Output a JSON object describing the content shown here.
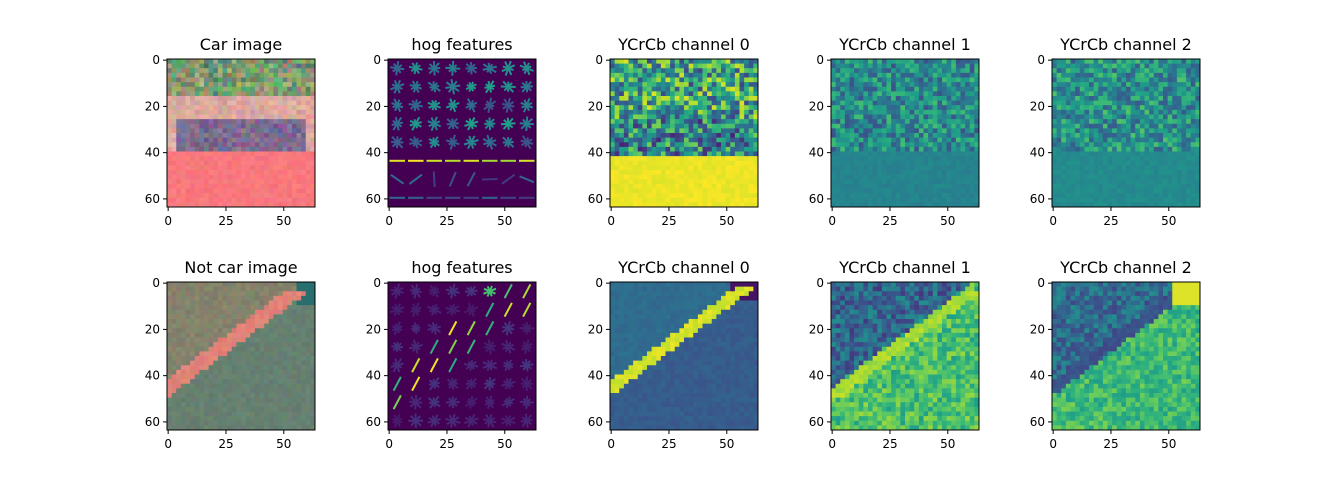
{
  "figure": {
    "rows": [
      {
        "panels": [
          {
            "title": "Car image",
            "kind": "photo-car"
          },
          {
            "title": "hog features",
            "kind": "hog-car"
          },
          {
            "title": "YCrCb channel 0",
            "kind": "y-car"
          },
          {
            "title": "YCrCb channel 1",
            "kind": "cr-car"
          },
          {
            "title": "YCrCb channel 2",
            "kind": "cb-car"
          }
        ]
      },
      {
        "panels": [
          {
            "title": "Not car image",
            "kind": "photo-road"
          },
          {
            "title": "hog features",
            "kind": "hog-road"
          },
          {
            "title": "YCrCb channel 0",
            "kind": "y-road"
          },
          {
            "title": "YCrCb channel 1",
            "kind": "cr-road"
          },
          {
            "title": "YCrCb channel 2",
            "kind": "cb-road"
          }
        ]
      }
    ]
  },
  "chart_data": [
    {
      "type": "heatmap",
      "title": "Car image",
      "xlim": [
        0,
        63
      ],
      "ylim": [
        63,
        0
      ],
      "xticks": [
        0,
        25,
        50
      ],
      "yticks": [
        0,
        20,
        40,
        60
      ],
      "colormap": "rgb"
    },
    {
      "type": "heatmap",
      "title": "hog features",
      "xlim": [
        0,
        63
      ],
      "ylim": [
        63,
        0
      ],
      "xticks": [
        0,
        25,
        50
      ],
      "yticks": [
        0,
        20,
        40,
        60
      ],
      "colormap": "viridis"
    },
    {
      "type": "heatmap",
      "title": "YCrCb channel 0",
      "xlim": [
        0,
        63
      ],
      "ylim": [
        63,
        0
      ],
      "xticks": [
        0,
        25,
        50
      ],
      "yticks": [
        0,
        20,
        40,
        60
      ],
      "colormap": "viridis"
    },
    {
      "type": "heatmap",
      "title": "YCrCb channel 1",
      "xlim": [
        0,
        63
      ],
      "ylim": [
        63,
        0
      ],
      "xticks": [
        0,
        25,
        50
      ],
      "yticks": [
        0,
        20,
        40,
        60
      ],
      "colormap": "viridis"
    },
    {
      "type": "heatmap",
      "title": "YCrCb channel 2",
      "xlim": [
        0,
        63
      ],
      "ylim": [
        63,
        0
      ],
      "xticks": [
        0,
        25,
        50
      ],
      "yticks": [
        0,
        20,
        40,
        60
      ],
      "colormap": "viridis"
    },
    {
      "type": "heatmap",
      "title": "Not car image",
      "xlim": [
        0,
        63
      ],
      "ylim": [
        63,
        0
      ],
      "xticks": [
        0,
        25,
        50
      ],
      "yticks": [
        0,
        20,
        40,
        60
      ],
      "colormap": "rgb"
    },
    {
      "type": "heatmap",
      "title": "hog features",
      "xlim": [
        0,
        63
      ],
      "ylim": [
        63,
        0
      ],
      "xticks": [
        0,
        25,
        50
      ],
      "yticks": [
        0,
        20,
        40,
        60
      ],
      "colormap": "viridis"
    },
    {
      "type": "heatmap",
      "title": "YCrCb channel 0",
      "xlim": [
        0,
        63
      ],
      "ylim": [
        63,
        0
      ],
      "xticks": [
        0,
        25,
        50
      ],
      "yticks": [
        0,
        20,
        40,
        60
      ],
      "colormap": "viridis"
    },
    {
      "type": "heatmap",
      "title": "YCrCb channel 1",
      "xlim": [
        0,
        63
      ],
      "ylim": [
        63,
        0
      ],
      "xticks": [
        0,
        25,
        50
      ],
      "yticks": [
        0,
        20,
        40,
        60
      ],
      "colormap": "viridis"
    },
    {
      "type": "heatmap",
      "title": "YCrCb channel 2",
      "xlim": [
        0,
        63
      ],
      "ylim": [
        63,
        0
      ],
      "xticks": [
        0,
        25,
        50
      ],
      "yticks": [
        0,
        20,
        40,
        60
      ],
      "colormap": "viridis"
    }
  ]
}
